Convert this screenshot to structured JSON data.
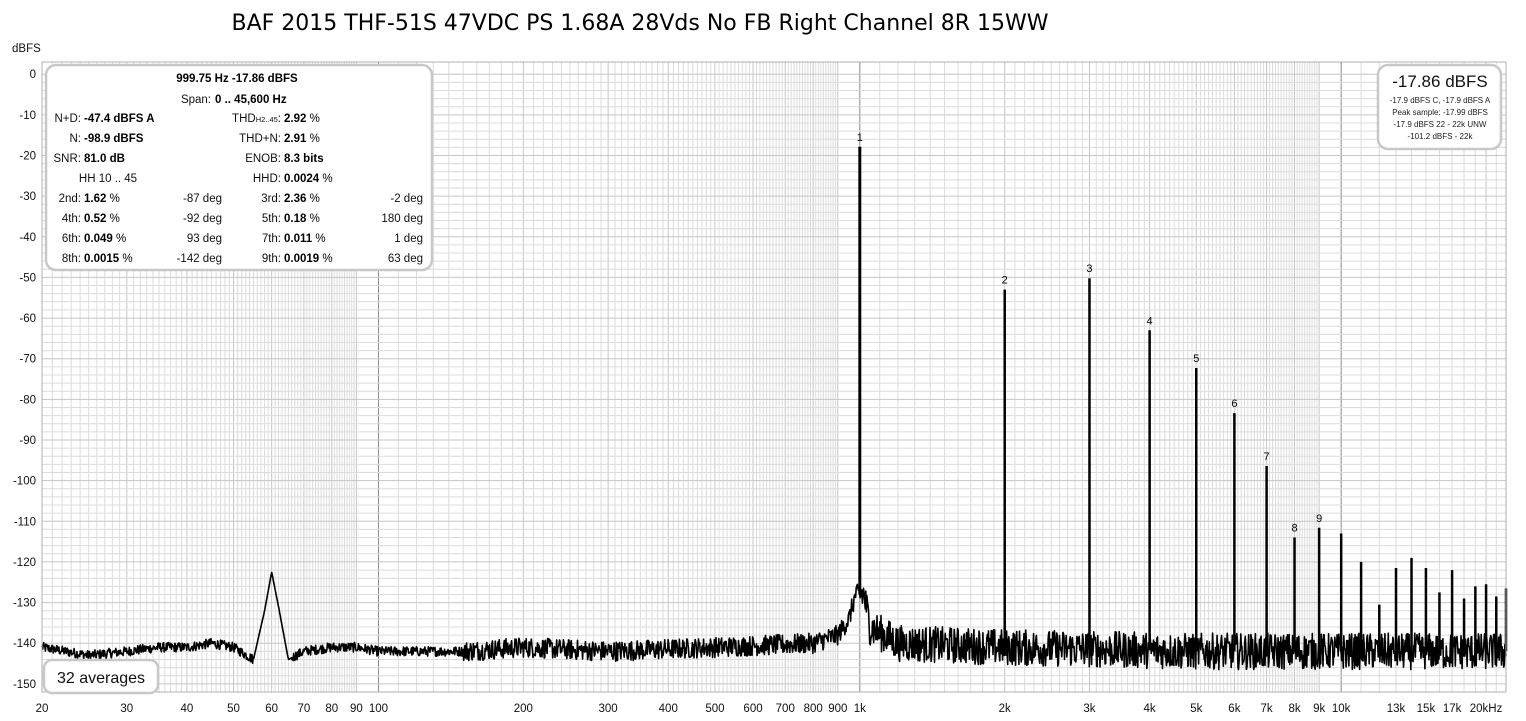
{
  "chart_data": {
    "type": "line",
    "title": "BAF 2015 THF-51S 47VDC PS 1.68A 28Vds No FB Right Channel 8R 15WW",
    "ylabel": "dBFS",
    "xscale": "log",
    "xlim": [
      20,
      22000
    ],
    "ylim": [
      -152,
      3
    ],
    "x_ticks": [
      {
        "v": 20,
        "label": "20"
      },
      {
        "v": 30,
        "label": "30"
      },
      {
        "v": 40,
        "label": "40"
      },
      {
        "v": 50,
        "label": "50"
      },
      {
        "v": 60,
        "label": "60"
      },
      {
        "v": 70,
        "label": "70"
      },
      {
        "v": 80,
        "label": "80"
      },
      {
        "v": 90,
        "label": "90"
      },
      {
        "v": 100,
        "label": "100"
      },
      {
        "v": 200,
        "label": "200"
      },
      {
        "v": 300,
        "label": "300"
      },
      {
        "v": 400,
        "label": "400"
      },
      {
        "v": 500,
        "label": "500"
      },
      {
        "v": 600,
        "label": "600"
      },
      {
        "v": 700,
        "label": "700"
      },
      {
        "v": 800,
        "label": "800"
      },
      {
        "v": 900,
        "label": "900"
      },
      {
        "v": 1000,
        "label": "1k"
      },
      {
        "v": 2000,
        "label": "2k"
      },
      {
        "v": 3000,
        "label": "3k"
      },
      {
        "v": 4000,
        "label": "4k"
      },
      {
        "v": 5000,
        "label": "5k"
      },
      {
        "v": 6000,
        "label": "6k"
      },
      {
        "v": 7000,
        "label": "7k"
      },
      {
        "v": 8000,
        "label": "8k"
      },
      {
        "v": 9000,
        "label": "9k"
      },
      {
        "v": 10000,
        "label": "10k"
      },
      {
        "v": 13000,
        "label": "13k"
      },
      {
        "v": 15000,
        "label": "15k"
      },
      {
        "v": 17000,
        "label": "17k"
      },
      {
        "v": 20000,
        "label": "20kHz"
      }
    ],
    "y_ticks": [
      0,
      -10,
      -20,
      -30,
      -40,
      -50,
      -60,
      -70,
      -80,
      -90,
      -100,
      -110,
      -120,
      -130,
      -140,
      -150
    ],
    "noise_floor": [
      [
        20,
        -141
      ],
      [
        25,
        -143
      ],
      [
        30,
        -142
      ],
      [
        35,
        -141
      ],
      [
        40,
        -141
      ],
      [
        45,
        -140
      ],
      [
        50,
        -141
      ],
      [
        55,
        -144
      ],
      [
        58,
        -132
      ],
      [
        60,
        -122.5
      ],
      [
        62,
        -131
      ],
      [
        65,
        -144
      ],
      [
        70,
        -142
      ],
      [
        80,
        -141
      ],
      [
        90,
        -141
      ],
      [
        100,
        -142
      ],
      [
        150,
        -142
      ],
      [
        200,
        -141
      ],
      [
        300,
        -142
      ],
      [
        500,
        -141
      ],
      [
        800,
        -140
      ],
      [
        900,
        -138
      ],
      [
        950,
        -134
      ],
      [
        980,
        -128
      ],
      [
        1020,
        -128
      ],
      [
        1050,
        -136
      ],
      [
        1200,
        -140
      ],
      [
        2000,
        -141
      ],
      [
        5000,
        -142
      ],
      [
        10000,
        -142
      ],
      [
        20000,
        -142
      ],
      [
        22000,
        -142
      ]
    ],
    "harmonics": [
      {
        "label": "1",
        "freq": 1000,
        "level": -17.86
      },
      {
        "label": "2",
        "freq": 2000,
        "level": -53
      },
      {
        "label": "3",
        "freq": 3000,
        "level": -50.2
      },
      {
        "label": "4",
        "freq": 4000,
        "level": -63
      },
      {
        "label": "5",
        "freq": 5000,
        "level": -72.3
      },
      {
        "label": "6",
        "freq": 6000,
        "level": -83.4
      },
      {
        "label": "7",
        "freq": 7000,
        "level": -96.4
      },
      {
        "label": "8",
        "freq": 8000,
        "level": -114
      },
      {
        "label": "9",
        "freq": 9000,
        "level": -111.6
      },
      {
        "label": "",
        "freq": 10000,
        "level": -113
      },
      {
        "label": "",
        "freq": 11000,
        "level": -120
      },
      {
        "label": "",
        "freq": 12000,
        "level": -130.5
      },
      {
        "label": "",
        "freq": 13000,
        "level": -121.5
      },
      {
        "label": "",
        "freq": 14000,
        "level": -119
      },
      {
        "label": "",
        "freq": 15000,
        "level": -121.5
      },
      {
        "label": "",
        "freq": 16000,
        "level": -127.5
      },
      {
        "label": "",
        "freq": 17000,
        "level": -122
      },
      {
        "label": "",
        "freq": 18000,
        "level": -129
      },
      {
        "label": "",
        "freq": 19000,
        "level": -126
      },
      {
        "label": "",
        "freq": 20000,
        "level": -125.5
      },
      {
        "label": "",
        "freq": 21000,
        "level": -128.5
      },
      {
        "label": "",
        "freq": 22000,
        "level": -126.5
      }
    ]
  },
  "stats": {
    "fundamental": "999.75 Hz  -17.86 dBFS",
    "span_label": "Span:",
    "span_value": "0 .. 45,600 Hz",
    "rows": [
      {
        "l1": "N+D:",
        "v1": "-47.4 dBFS A",
        "l2": "THD",
        "l2sub": "H2..45",
        "l2tail": ":",
        "v2": "2.92",
        "u2": " %"
      },
      {
        "l1": "N:",
        "v1": "-98.9 dBFS",
        "l2": "THD+N:",
        "l2sub": "",
        "l2tail": "",
        "v2": "2.91",
        "u2": " %"
      },
      {
        "l1": "SNR:",
        "v1": "81.0 dB",
        "l2": "ENOB:",
        "l2sub": "",
        "l2tail": "",
        "v2": "8.3 bits",
        "u2": ""
      },
      {
        "l1": "HH 10 .. 45",
        "v1": "",
        "l2": "HHD:",
        "l2sub": "",
        "l2tail": "",
        "v2": "0.0024",
        "u2": " %"
      }
    ],
    "harmonic_rows": [
      {
        "a_label": "2nd:",
        "a_val": "1.62",
        "a_phase": "-87 deg",
        "b_label": "3rd:",
        "b_val": "2.36",
        "b_phase": "-2 deg"
      },
      {
        "a_label": "4th:",
        "a_val": "0.52",
        "a_phase": "-92 deg",
        "b_label": "5th:",
        "b_val": "0.18",
        "b_phase": "180 deg"
      },
      {
        "a_label": "6th:",
        "a_val": "0.049",
        "a_phase": "93 deg",
        "b_label": "7th:",
        "b_val": "0.011",
        "b_phase": "1 deg"
      },
      {
        "a_label": "8th:",
        "a_val": "0.0015",
        "a_phase": "-142 deg",
        "b_label": "9th:",
        "b_val": "0.0019",
        "b_phase": "63 deg"
      }
    ],
    "percent_unit": " %"
  },
  "level_box": {
    "main": "-17.86 dBFS",
    "lines": [
      "-17.9 dBFS C, -17.9 dBFS A",
      "Peak sample: -17.99 dBFS",
      "-17.9 dBFS 22 - 22k UNW",
      "-101.2 dBFS - 22k"
    ]
  },
  "averages_label": "32 averages",
  "colors": {
    "trace": "#000000",
    "grid_minor": "#dcdcdc",
    "grid_decade": "#8a8a8a",
    "box_border": "#c8c8c8"
  }
}
